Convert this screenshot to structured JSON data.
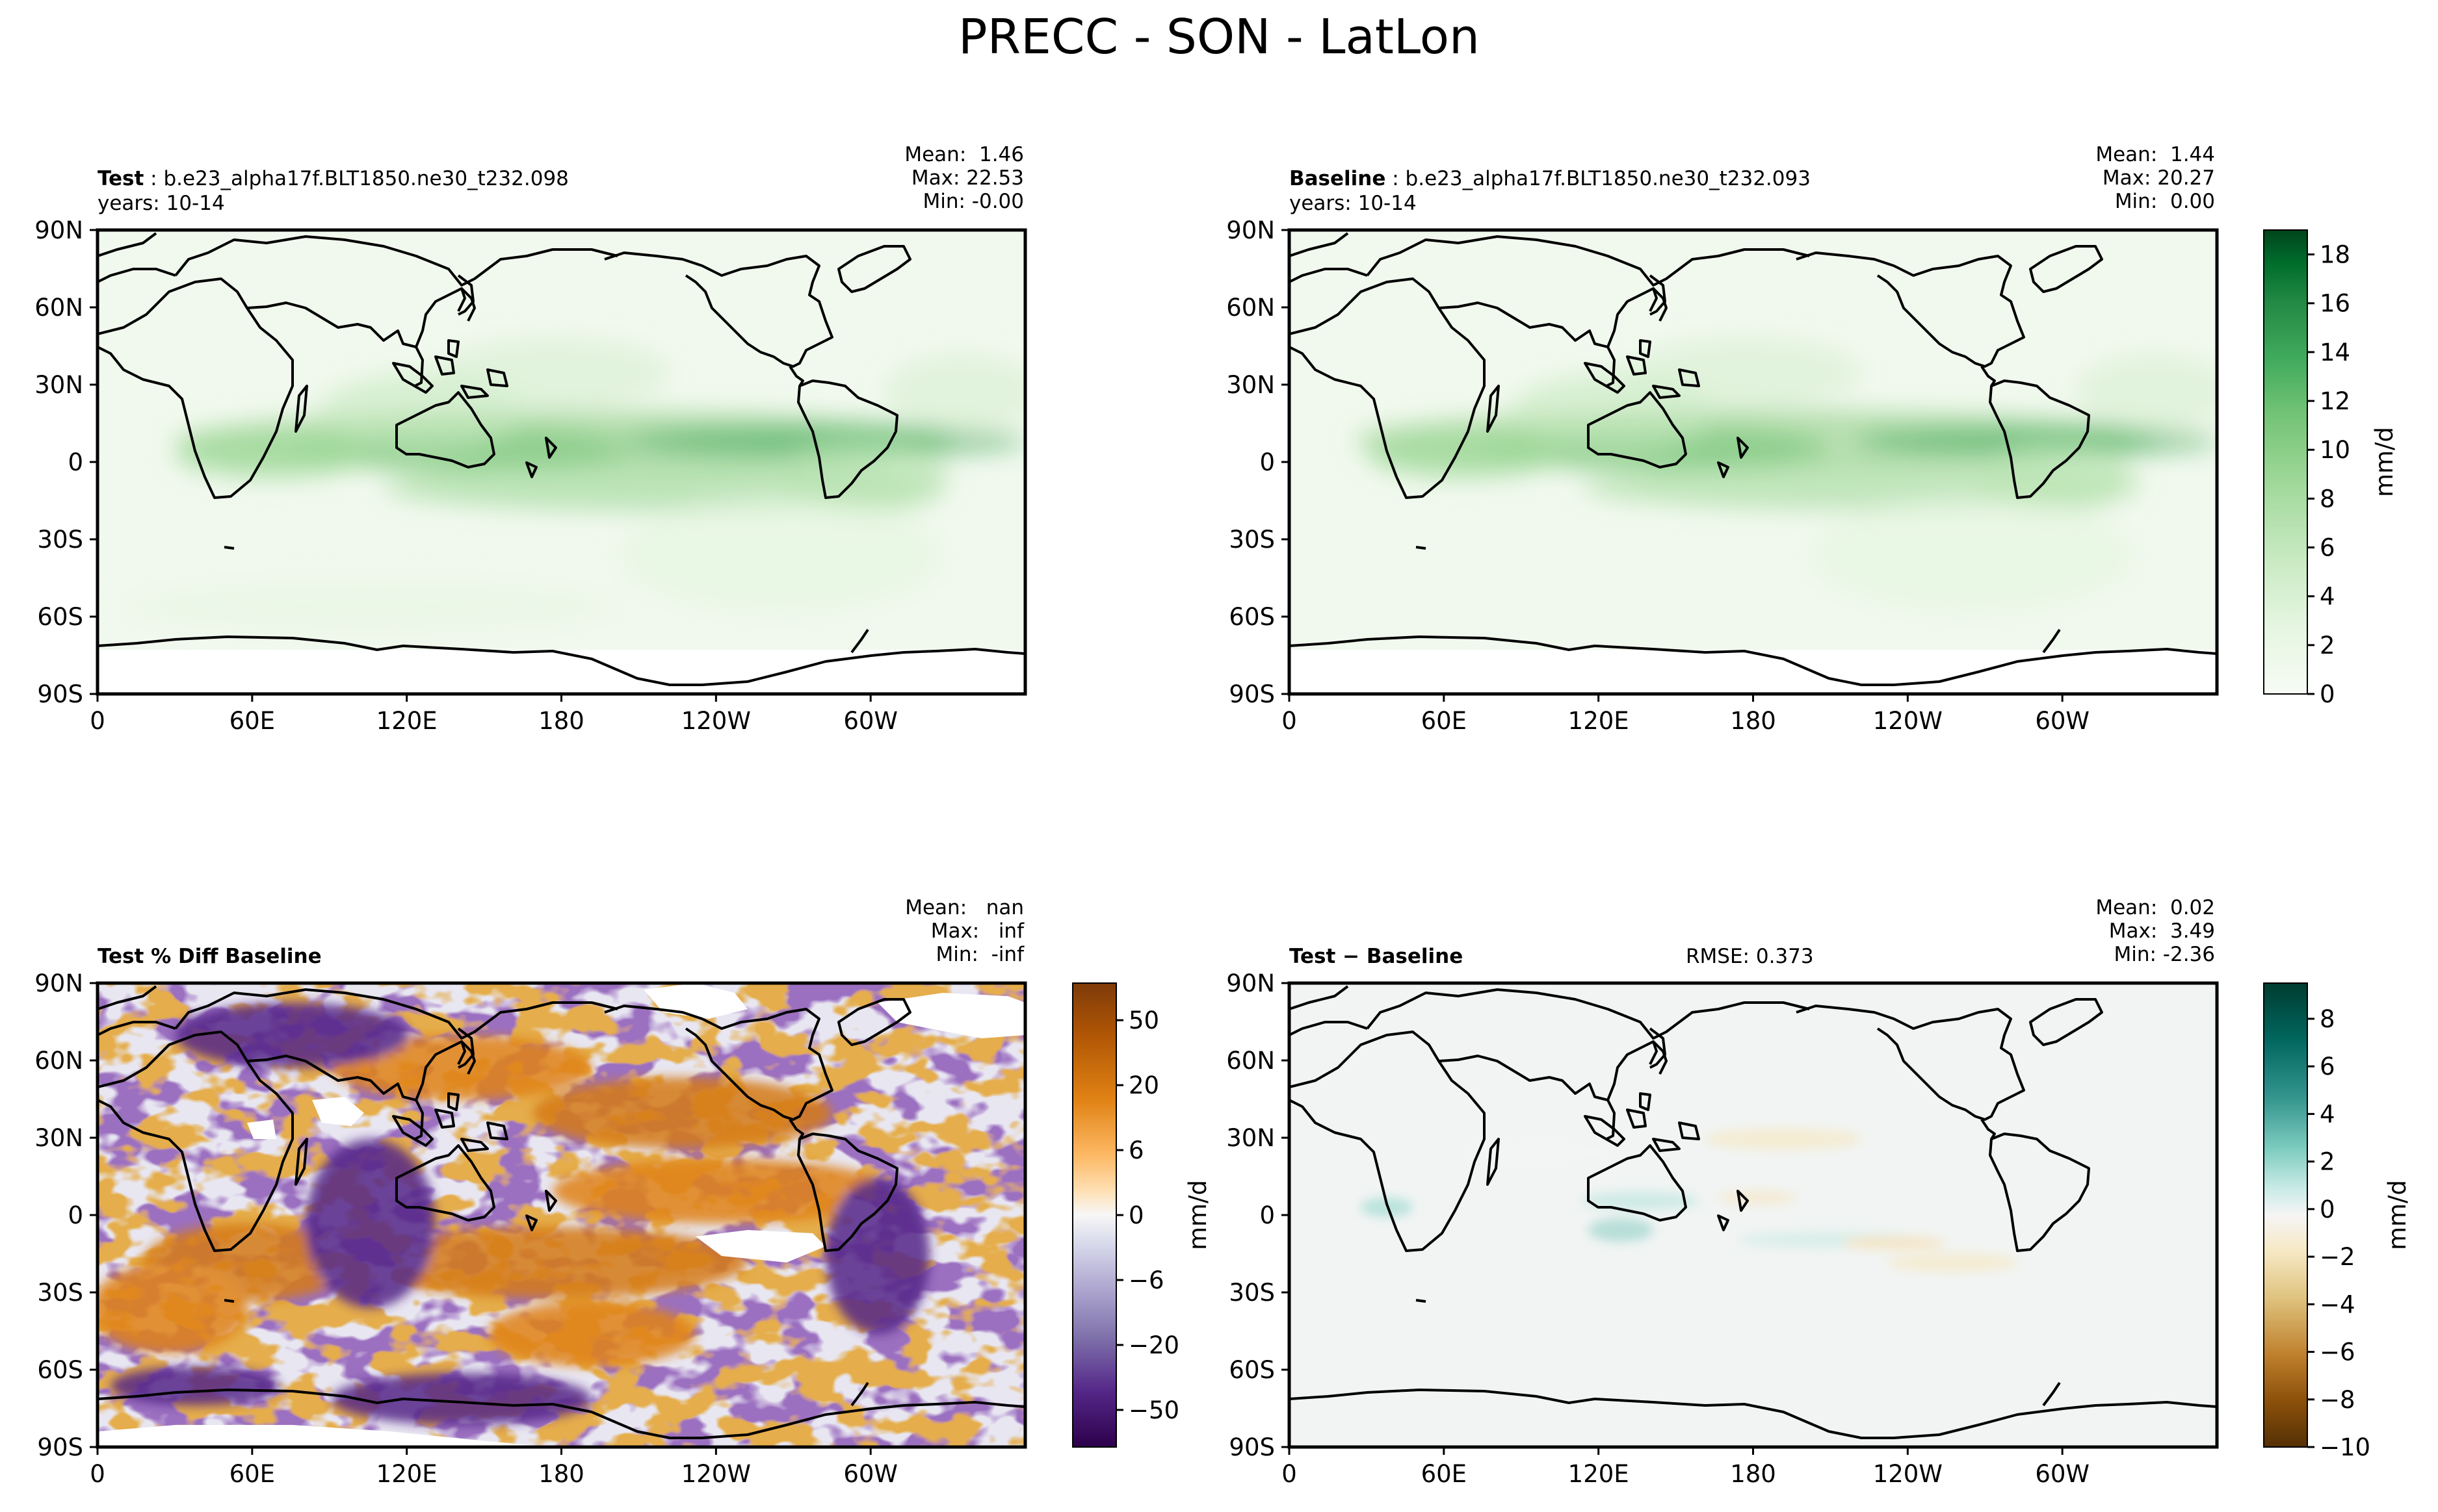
{
  "figure": {
    "title": "PRECC - SON - LatLon"
  },
  "axes": {
    "lat_ticks": [
      "90N",
      "60N",
      "30N",
      "0",
      "30S",
      "60S",
      "90S"
    ],
    "lon_ticks": [
      "0",
      "60E",
      "120E",
      "180",
      "120W",
      "60W"
    ]
  },
  "panels": [
    {
      "id": "test",
      "label": "Test",
      "case": "b.e23_alpha17f.BLT1850.ne30_t232.098",
      "years": "years: 10-14",
      "mean": "Mean:  1.46",
      "max": "Max: 22.53",
      "min": "Min: -0.00"
    },
    {
      "id": "baseline",
      "label": "Baseline",
      "case": "b.e23_alpha17f.BLT1850.ne30_t232.093",
      "years": "years: 10-14",
      "mean": "Mean:  1.44",
      "max": "Max: 20.27",
      "min": "Min:  0.00"
    },
    {
      "id": "pctdiff",
      "label": "Test % Diff Baseline",
      "mean": "Mean:   nan",
      "max": "Max:   inf",
      "min": "Min:  -inf"
    },
    {
      "id": "diff",
      "label": "Test − Baseline",
      "rmse": "RMSE: 0.373",
      "mean": "Mean:  0.02",
      "max": "Max:  3.49",
      "min": "Min: -2.36"
    }
  ],
  "colorbars": [
    {
      "id": "precip",
      "label": "mm/d",
      "ticks": [
        "0",
        "2",
        "4",
        "6",
        "8",
        "10",
        "12",
        "14",
        "16",
        "18"
      ],
      "colors": [
        "#f7fcf5",
        "#e5f5e0",
        "#c7e9c0",
        "#a1d99b",
        "#74c476",
        "#41ab5d",
        "#238b45",
        "#006d2c",
        "#00441b"
      ]
    },
    {
      "id": "pct",
      "label": "mm/d",
      "ticks": [
        "50",
        "20",
        "6",
        "0",
        "−6",
        "−20",
        "−50"
      ],
      "colors": [
        "#7f3b08",
        "#b35806",
        "#e08214",
        "#fdb863",
        "#fee0b6",
        "#f7f7f7",
        "#d8daeb",
        "#b2abd2",
        "#8073ac",
        "#542788",
        "#2d004b"
      ]
    },
    {
      "id": "diffcb",
      "label": "mm/d",
      "ticks": [
        "8",
        "6",
        "4",
        "2",
        "0",
        "−2",
        "−4",
        "−6",
        "−8",
        "−10"
      ],
      "colors": [
        "#003c30",
        "#01665e",
        "#35978f",
        "#80cdc1",
        "#c7eae5",
        "#f5f5f5",
        "#f6e8c3",
        "#dfc27d",
        "#bf812d",
        "#8c510a",
        "#543005"
      ]
    }
  ],
  "chart_data": [
    {
      "type": "heatmap",
      "title": "Test",
      "subtitle": "b.e23_alpha17f.BLT1850.ne30_t232.098 years: 10-14",
      "variable": "PRECC",
      "season": "SON",
      "units": "mm/d",
      "x": "longitude",
      "y": "latitude",
      "xlim": [
        0,
        360
      ],
      "ylim": [
        -90,
        90
      ],
      "stats": {
        "mean": 1.46,
        "max": 22.53,
        "min": -0.0
      },
      "colorbar_range": [
        0,
        19
      ]
    },
    {
      "type": "heatmap",
      "title": "Baseline",
      "subtitle": "b.e23_alpha17f.BLT1850.ne30_t232.093 years: 10-14",
      "variable": "PRECC",
      "season": "SON",
      "units": "mm/d",
      "xlim": [
        0,
        360
      ],
      "ylim": [
        -90,
        90
      ],
      "stats": {
        "mean": 1.44,
        "max": 20.27,
        "min": 0.0
      },
      "colorbar_range": [
        0,
        19
      ]
    },
    {
      "type": "heatmap",
      "title": "Test % Diff Baseline",
      "units": "mm/d",
      "xlim": [
        0,
        360
      ],
      "ylim": [
        -90,
        90
      ],
      "stats": {
        "mean": "nan",
        "max": "inf",
        "min": "-inf"
      },
      "colorbar_range": [
        -80,
        80
      ]
    },
    {
      "type": "heatmap",
      "title": "Test − Baseline",
      "units": "mm/d",
      "xlim": [
        0,
        360
      ],
      "ylim": [
        -90,
        90
      ],
      "stats": {
        "mean": 0.02,
        "max": 3.49,
        "min": -2.36,
        "rmse": 0.373
      },
      "colorbar_range": [
        -10,
        9.5
      ]
    }
  ]
}
